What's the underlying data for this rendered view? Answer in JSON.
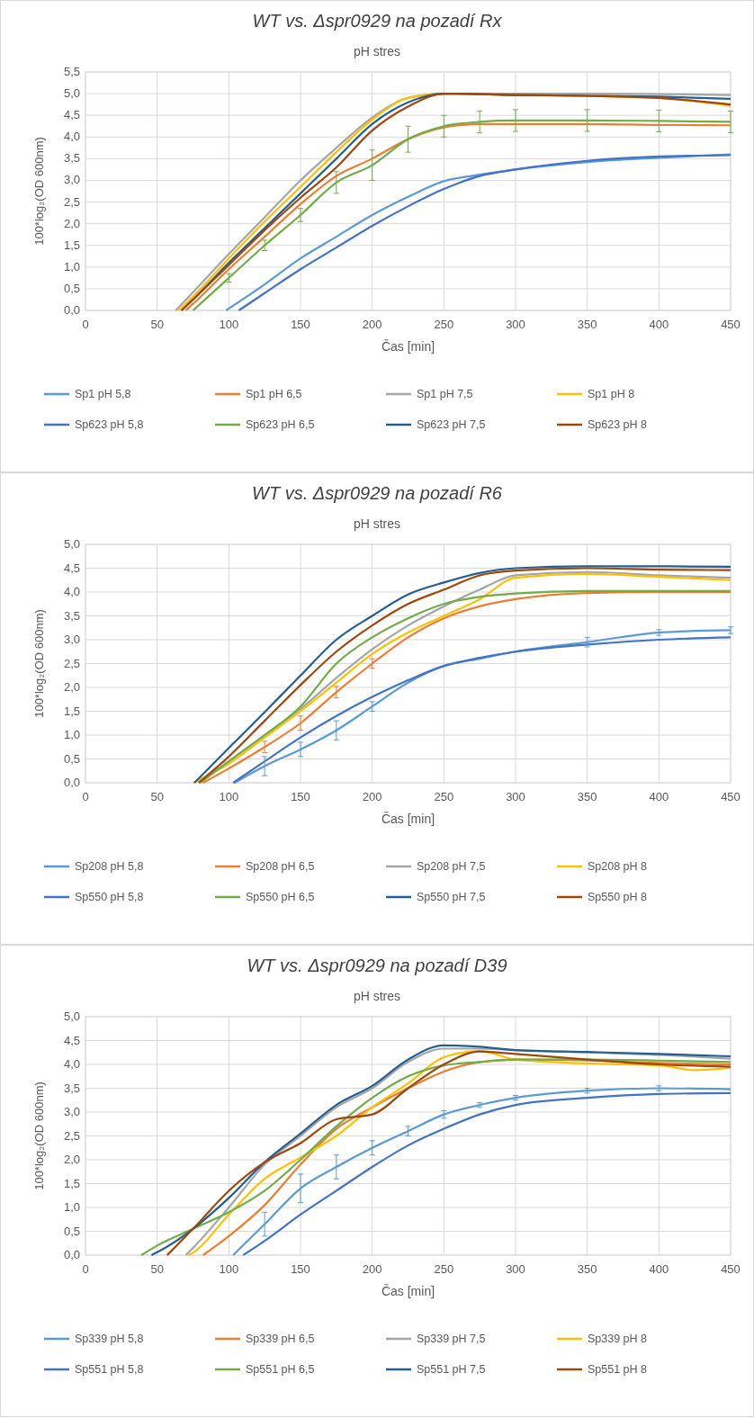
{
  "chart_data": [
    {
      "type": "line",
      "title": "WT vs. Δspr0929 na pozadí Rx",
      "subtitle": "pH stres",
      "xlabel": "Čas [min]",
      "ylabel": "100*log₂(OD 600nm)",
      "xlim": [
        0,
        450
      ],
      "xticks": [
        0,
        50,
        100,
        150,
        200,
        250,
        300,
        350,
        400,
        450
      ],
      "ylim": [
        0,
        5.5
      ],
      "yticks": [
        {
          "value": 0,
          "label": "0,0"
        },
        {
          "value": 0.5,
          "label": "0,5"
        },
        {
          "value": 1,
          "label": "1,0"
        },
        {
          "value": 1.5,
          "label": "1,5"
        },
        {
          "value": 2,
          "label": "2,0"
        },
        {
          "value": 2.5,
          "label": "2,5"
        },
        {
          "value": 3,
          "label": "3,0"
        },
        {
          "value": 3.5,
          "label": "3,5"
        },
        {
          "value": 4,
          "label": "4,0"
        },
        {
          "value": 4.5,
          "label": "4,5"
        },
        {
          "value": 5,
          "label": "5,0"
        },
        {
          "value": 5.5,
          "label": "5,5"
        }
      ],
      "grid": true,
      "legend": "bottom",
      "marker": "none",
      "line_style": "solid",
      "series": [
        {
          "name": "Sp1 pH 5,8",
          "color": "#5b9bd5",
          "x": [
            98,
            125,
            150,
            175,
            200,
            225,
            250,
            275,
            300,
            350,
            400,
            450
          ],
          "values": [
            0,
            0.6,
            1.2,
            1.7,
            2.2,
            2.62,
            2.98,
            3.13,
            3.25,
            3.42,
            3.52,
            3.6
          ]
        },
        {
          "name": "Sp1 pH 6,5",
          "color": "#ed7d31",
          "x": [
            70,
            75,
            100,
            125,
            150,
            175,
            200,
            225,
            250,
            275,
            300,
            350,
            400,
            450
          ],
          "values": [
            0,
            0.15,
            0.95,
            1.7,
            2.45,
            3.1,
            3.5,
            3.95,
            4.22,
            4.3,
            4.3,
            4.3,
            4.28,
            4.27
          ]
        },
        {
          "name": "Sp1 pH 7,5",
          "color": "#a5a5a5",
          "x": [
            63,
            75,
            100,
            125,
            150,
            175,
            200,
            225,
            250,
            300,
            350,
            400,
            450
          ],
          "values": [
            0,
            0.42,
            1.3,
            2.15,
            3.0,
            3.75,
            4.45,
            4.9,
            5.0,
            5.0,
            5.0,
            4.99,
            4.97
          ]
        },
        {
          "name": "Sp1 pH 8",
          "color": "#ffc000",
          "x": [
            65,
            75,
            100,
            125,
            150,
            175,
            200,
            225,
            250,
            300,
            350,
            400,
            450
          ],
          "values": [
            0,
            0.32,
            1.2,
            2.05,
            2.85,
            3.65,
            4.4,
            4.9,
            5.0,
            4.97,
            4.95,
            4.9,
            4.72
          ]
        },
        {
          "name": "Sp623 pH 5,8",
          "color": "#4472c4",
          "x": [
            107,
            125,
            150,
            175,
            200,
            225,
            250,
            275,
            300,
            350,
            400,
            450
          ],
          "values": [
            0,
            0.4,
            0.95,
            1.45,
            1.95,
            2.4,
            2.8,
            3.1,
            3.25,
            3.45,
            3.55,
            3.58
          ]
        },
        {
          "name": "Sp623 pH 6,5",
          "color": "#70ad47",
          "x": [
            75,
            100,
            125,
            150,
            175,
            200,
            225,
            250,
            275,
            300,
            350,
            400,
            450
          ],
          "values": [
            0,
            0.75,
            1.5,
            2.2,
            2.95,
            3.35,
            3.95,
            4.25,
            4.35,
            4.38,
            4.38,
            4.37,
            4.35
          ],
          "errors": [
            null,
            0.1,
            0.12,
            0.15,
            0.25,
            0.35,
            0.3,
            0.25,
            0.25,
            0.25,
            0.25,
            0.25,
            0.25
          ]
        },
        {
          "name": "Sp623 pH 7,5",
          "color": "#255e91",
          "x": [
            67,
            75,
            100,
            125,
            150,
            175,
            200,
            225,
            250,
            300,
            350,
            400,
            450
          ],
          "values": [
            0,
            0.25,
            1.1,
            1.9,
            2.7,
            3.5,
            4.3,
            4.8,
            5.0,
            4.97,
            4.95,
            4.93,
            4.88
          ]
        },
        {
          "name": "Sp623 pH 8",
          "color": "#9e480e",
          "x": [
            67,
            75,
            100,
            125,
            150,
            175,
            200,
            225,
            250,
            300,
            350,
            400,
            450
          ],
          "values": [
            0,
            0.25,
            1.05,
            1.85,
            2.6,
            3.3,
            4.15,
            4.7,
            5.0,
            4.97,
            4.95,
            4.9,
            4.75
          ]
        }
      ]
    },
    {
      "type": "line",
      "title": "WT vs. Δspr0929 na pozadí R6",
      "subtitle": "pH stres",
      "xlabel": "Čas [min]",
      "ylabel": "100*log₂(OD 600nm)",
      "xlim": [
        0,
        450
      ],
      "xticks": [
        0,
        50,
        100,
        150,
        200,
        250,
        300,
        350,
        400,
        450
      ],
      "ylim": [
        0,
        5
      ],
      "yticks": [
        {
          "value": 0,
          "label": "0,0"
        },
        {
          "value": 0.5,
          "label": "0,5"
        },
        {
          "value": 1,
          "label": "1,0"
        },
        {
          "value": 1.5,
          "label": "1,5"
        },
        {
          "value": 2,
          "label": "2,0"
        },
        {
          "value": 2.5,
          "label": "2,5"
        },
        {
          "value": 3,
          "label": "3,0"
        },
        {
          "value": 3.5,
          "label": "3,5"
        },
        {
          "value": 4,
          "label": "4,0"
        },
        {
          "value": 4.5,
          "label": "4,5"
        },
        {
          "value": 5,
          "label": "5,0"
        }
      ],
      "grid": true,
      "legend": "bottom",
      "marker": "none",
      "line_style": "solid",
      "series": [
        {
          "name": "Sp208 pH 5,8",
          "color": "#5b9bd5",
          "x": [
            104,
            125,
            150,
            175,
            200,
            225,
            250,
            275,
            300,
            350,
            400,
            450
          ],
          "values": [
            0,
            0.35,
            0.7,
            1.1,
            1.6,
            2.1,
            2.45,
            2.6,
            2.75,
            2.95,
            3.15,
            3.2
          ],
          "errors": [
            null,
            0.2,
            0.15,
            0.2,
            0.1,
            null,
            null,
            null,
            null,
            0.1,
            0.06,
            0.07
          ]
        },
        {
          "name": "Sp208 pH 6,5",
          "color": "#ed7d31",
          "x": [
            82,
            100,
            125,
            150,
            175,
            200,
            225,
            250,
            275,
            300,
            350,
            400,
            450
          ],
          "values": [
            0,
            0.3,
            0.75,
            1.25,
            1.9,
            2.5,
            3.05,
            3.45,
            3.7,
            3.85,
            3.98,
            4.0,
            4.0
          ],
          "errors": [
            null,
            null,
            0.12,
            0.15,
            0.12,
            0.1,
            null,
            null,
            null,
            null,
            null,
            null,
            null
          ]
        },
        {
          "name": "Sp208 pH 7,5",
          "color": "#a5a5a5",
          "x": [
            79,
            100,
            125,
            150,
            175,
            200,
            225,
            250,
            275,
            300,
            350,
            400,
            450
          ],
          "values": [
            0,
            0.45,
            1.0,
            1.55,
            2.2,
            2.8,
            3.3,
            3.7,
            4.05,
            4.35,
            4.42,
            4.35,
            4.3
          ]
        },
        {
          "name": "Sp208 pH 8",
          "color": "#ffc000",
          "x": [
            75,
            100,
            125,
            150,
            175,
            200,
            225,
            250,
            275,
            300,
            350,
            400,
            450
          ],
          "values": [
            0,
            0.4,
            0.95,
            1.5,
            2.1,
            2.7,
            3.15,
            3.5,
            3.85,
            4.3,
            4.38,
            4.32,
            4.25
          ]
        },
        {
          "name": "Sp550 pH 5,8",
          "color": "#4472c4",
          "x": [
            103,
            125,
            150,
            175,
            200,
            225,
            250,
            275,
            300,
            350,
            400,
            450
          ],
          "values": [
            0,
            0.45,
            0.95,
            1.4,
            1.8,
            2.15,
            2.45,
            2.62,
            2.75,
            2.9,
            3.0,
            3.05
          ]
        },
        {
          "name": "Sp550 pH 6,5",
          "color": "#70ad47",
          "x": [
            80,
            100,
            125,
            150,
            175,
            200,
            225,
            250,
            275,
            300,
            350,
            400,
            450
          ],
          "values": [
            0,
            0.45,
            1.0,
            1.6,
            2.5,
            3.05,
            3.45,
            3.75,
            3.9,
            3.97,
            4.02,
            4.02,
            4.02
          ]
        },
        {
          "name": "Sp550 pH 7,5",
          "color": "#255e91",
          "x": [
            76,
            100,
            125,
            150,
            175,
            200,
            225,
            250,
            275,
            300,
            350,
            400,
            450
          ],
          "values": [
            0,
            0.73,
            1.48,
            2.25,
            3.0,
            3.5,
            3.95,
            4.2,
            4.4,
            4.5,
            4.54,
            4.54,
            4.53
          ]
        },
        {
          "name": "Sp550 pH 8",
          "color": "#9e480e",
          "x": [
            79,
            100,
            125,
            150,
            175,
            200,
            225,
            250,
            275,
            300,
            350,
            400,
            450
          ],
          "values": [
            0,
            0.55,
            1.3,
            2.05,
            2.75,
            3.3,
            3.75,
            4.05,
            4.35,
            4.45,
            4.5,
            4.47,
            4.46
          ]
        }
      ]
    },
    {
      "type": "line",
      "title": "WT vs. Δspr0929 na pozadí D39",
      "subtitle": "pH stres",
      "xlabel": "Čas [min]",
      "ylabel": "100*log₂(OD 600nm)",
      "xlim": [
        0,
        450
      ],
      "xticks": [
        0,
        50,
        100,
        150,
        200,
        250,
        300,
        350,
        400,
        450
      ],
      "ylim": [
        0,
        5
      ],
      "yticks": [
        {
          "value": 0,
          "label": "0,0"
        },
        {
          "value": 0.5,
          "label": "0,5"
        },
        {
          "value": 1,
          "label": "1,0"
        },
        {
          "value": 1.5,
          "label": "1,5"
        },
        {
          "value": 2,
          "label": "2,0"
        },
        {
          "value": 2.5,
          "label": "2,5"
        },
        {
          "value": 3,
          "label": "3,0"
        },
        {
          "value": 3.5,
          "label": "3,5"
        },
        {
          "value": 4,
          "label": "4,0"
        },
        {
          "value": 4.5,
          "label": "4,5"
        },
        {
          "value": 5,
          "label": "5,0"
        }
      ],
      "grid": true,
      "legend": "bottom",
      "marker": "none",
      "line_style": "solid",
      "series": [
        {
          "name": "Sp339 pH 5,8",
          "color": "#5b9bd5",
          "x": [
            103,
            125,
            150,
            175,
            200,
            225,
            250,
            275,
            300,
            350,
            400,
            450
          ],
          "values": [
            0,
            0.65,
            1.4,
            1.85,
            2.25,
            2.6,
            2.95,
            3.15,
            3.3,
            3.45,
            3.5,
            3.48
          ],
          "errors": [
            null,
            0.25,
            0.3,
            0.25,
            0.15,
            0.1,
            0.08,
            0.05,
            0.05,
            0.05,
            0.05,
            null
          ]
        },
        {
          "name": "Sp339 pH 6,5",
          "color": "#ed7d31",
          "x": [
            82,
            100,
            125,
            150,
            175,
            200,
            225,
            250,
            275,
            300,
            350,
            400,
            450
          ],
          "values": [
            0,
            0.4,
            1.05,
            1.9,
            2.65,
            3.1,
            3.5,
            3.85,
            4.05,
            4.1,
            4.08,
            4.03,
            4.0
          ]
        },
        {
          "name": "Sp339 pH 7,5",
          "color": "#a5a5a5",
          "x": [
            70,
            75,
            100,
            125,
            150,
            175,
            200,
            225,
            250,
            275,
            300,
            350,
            400,
            450
          ],
          "values": [
            0,
            0.15,
            1.0,
            1.9,
            2.5,
            3.1,
            3.5,
            4.05,
            4.33,
            4.33,
            4.3,
            4.25,
            4.2,
            4.12
          ]
        },
        {
          "name": "Sp339 pH 8",
          "color": "#ffc000",
          "x": [
            72,
            75,
            100,
            125,
            150,
            175,
            200,
            225,
            250,
            275,
            300,
            350,
            400,
            425,
            450
          ],
          "values": [
            0,
            0.05,
            0.85,
            1.6,
            2.05,
            2.5,
            3.1,
            3.6,
            4.15,
            4.28,
            4.1,
            4.02,
            3.98,
            3.88,
            3.93
          ]
        },
        {
          "name": "Sp551 pH 5,8",
          "color": "#4472c4",
          "x": [
            110,
            125,
            150,
            175,
            200,
            225,
            250,
            275,
            300,
            350,
            400,
            450
          ],
          "values": [
            0,
            0.3,
            0.85,
            1.35,
            1.85,
            2.3,
            2.65,
            2.95,
            3.15,
            3.3,
            3.38,
            3.4
          ]
        },
        {
          "name": "Sp551 pH 6,5",
          "color": "#70ad47",
          "x": [
            39,
            50,
            75,
            100,
            125,
            150,
            175,
            200,
            225,
            250,
            275,
            300,
            350,
            400,
            450
          ],
          "values": [
            0,
            0.2,
            0.55,
            0.9,
            1.35,
            2.0,
            2.7,
            3.3,
            3.75,
            3.98,
            4.05,
            4.1,
            4.1,
            4.08,
            4.05
          ]
        },
        {
          "name": "Sp551 pH 7,5",
          "color": "#255e91",
          "x": [
            46,
            50,
            75,
            100,
            125,
            150,
            175,
            200,
            225,
            250,
            275,
            300,
            350,
            400,
            450
          ],
          "values": [
            0,
            0.06,
            0.55,
            1.2,
            1.95,
            2.55,
            3.15,
            3.55,
            4.1,
            4.4,
            4.37,
            4.3,
            4.26,
            4.22,
            4.17
          ]
        },
        {
          "name": "Sp551 pH 8",
          "color": "#9e480e",
          "x": [
            57,
            75,
            100,
            125,
            150,
            175,
            200,
            225,
            250,
            275,
            300,
            350,
            400,
            450
          ],
          "values": [
            0,
            0.55,
            1.35,
            1.95,
            2.35,
            2.85,
            2.95,
            3.5,
            4.0,
            4.27,
            4.22,
            4.1,
            4.0,
            3.95
          ]
        }
      ]
    }
  ]
}
